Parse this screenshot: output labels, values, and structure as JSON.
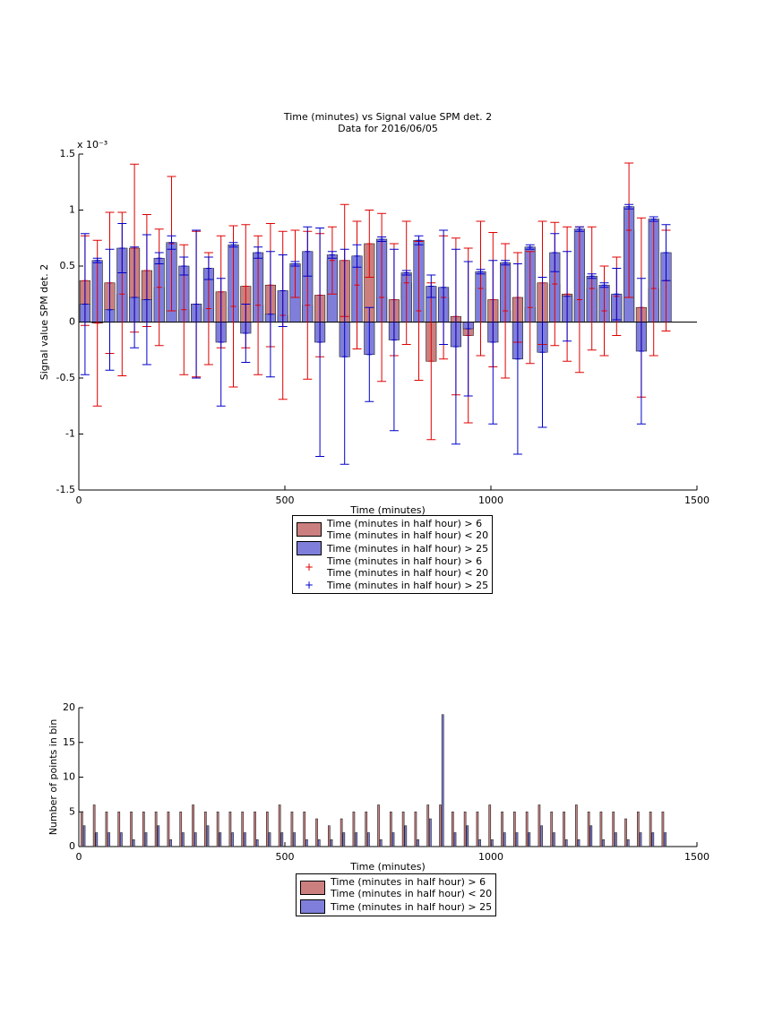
{
  "chart_data": [
    {
      "type": "bar",
      "barmode": "overlay",
      "title": "Time (minutes) vs Signal value SPM det. 2",
      "subtitle": "Data for 2016/06/05",
      "y_multiplier": "x 10⁻³",
      "xlabel": "Time (minutes)",
      "ylabel": "Signal value SPM det. 2",
      "xlim": [
        0,
        1500
      ],
      "xticks": [
        0,
        500,
        1000,
        1500
      ],
      "ylim": [
        -1.5,
        1.5
      ],
      "yticks": [
        -1.5,
        -1,
        -0.5,
        0,
        0.5,
        1,
        1.5
      ],
      "x": [
        15,
        45,
        75,
        105,
        135,
        165,
        195,
        225,
        255,
        285,
        315,
        345,
        375,
        405,
        435,
        465,
        495,
        525,
        555,
        585,
        615,
        645,
        675,
        705,
        735,
        765,
        795,
        825,
        855,
        885,
        915,
        945,
        975,
        1005,
        1035,
        1065,
        1095,
        1125,
        1155,
        1185,
        1215,
        1245,
        1275,
        1305,
        1335,
        1365,
        1395,
        1425
      ],
      "series": [
        {
          "name": "Time (minutes in half hour) > 6\nTime (minutes in half hour) < 20",
          "color": "#cc7f7f",
          "errorbar_color": "#e00000",
          "errorbar_name": "Time (minutes in half hour) > 6\nTime (minutes in half hour) < 20",
          "values": [
            0.37,
            -0.01,
            0.35,
            0.25,
            0.66,
            0.46,
            0.31,
            0.7,
            0.11,
            0.16,
            0.12,
            0.27,
            0.14,
            0.32,
            0.15,
            0.33,
            0.06,
            0.52,
            0.15,
            0.24,
            0.55,
            0.55,
            0.33,
            0.7,
            0.22,
            0.2,
            0.35,
            0.1,
            -0.35,
            0.22,
            0.05,
            -0.12,
            0.3,
            0.2,
            0.1,
            0.22,
            0.13,
            0.35,
            0.34,
            0.25,
            0.2,
            0.3,
            0.1,
            0.23,
            0.82,
            0.13,
            0.3,
            0.37
          ],
          "errors": [
            0.4,
            0.74,
            0.63,
            0.73,
            0.75,
            0.5,
            0.52,
            0.6,
            0.58,
            0.65,
            0.5,
            0.5,
            0.72,
            0.55,
            0.62,
            0.55,
            0.75,
            0.3,
            0.66,
            0.55,
            0.3,
            0.5,
            0.57,
            0.3,
            0.75,
            0.5,
            0.55,
            0.62,
            0.7,
            0.55,
            0.7,
            0.78,
            0.6,
            0.6,
            0.6,
            0.4,
            0.5,
            0.55,
            0.55,
            0.6,
            0.65,
            0.55,
            0.4,
            0.35,
            0.6,
            0.8,
            0.6,
            0.45
          ]
        },
        {
          "name": "Time (minutes in half hour) > 25",
          "color": "#7f7fdb",
          "errorbar_color": "#0000cc",
          "errorbar_name": "Time (minutes in half hour) > 25",
          "values": [
            0.16,
            0.55,
            0.11,
            0.66,
            0.22,
            0.2,
            0.57,
            0.71,
            0.5,
            0.16,
            0.48,
            -0.18,
            0.69,
            -0.1,
            0.62,
            0.07,
            0.28,
            0.52,
            0.63,
            -0.18,
            0.6,
            -0.31,
            0.59,
            -0.29,
            0.74,
            -0.16,
            0.44,
            0.73,
            0.32,
            0.31,
            -0.22,
            -0.06,
            0.45,
            -0.18,
            0.53,
            -0.33,
            0.67,
            -0.27,
            0.62,
            0.23,
            0.83,
            0.41,
            0.33,
            0.25,
            1.03,
            -0.26,
            0.92,
            0.62
          ],
          "errors": [
            0.63,
            0.02,
            0.54,
            0.22,
            0.45,
            0.58,
            0.05,
            0.06,
            0.08,
            0.66,
            0.1,
            0.57,
            0.02,
            0.26,
            0.05,
            0.56,
            0.32,
            0.02,
            0.22,
            1.02,
            0.03,
            0.96,
            0.1,
            0.42,
            0.02,
            0.81,
            0.02,
            0.04,
            0.1,
            0.51,
            0.87,
            0.6,
            0.02,
            0.73,
            0.02,
            0.85,
            0.02,
            0.67,
            0.17,
            0.4,
            0.02,
            0.02,
            0.02,
            0.23,
            0.02,
            0.65,
            0.02,
            0.25
          ]
        }
      ]
    },
    {
      "type": "bar",
      "barmode": "group",
      "xlabel": "Time (minutes)",
      "ylabel": "Number of points in bin",
      "xlim": [
        0,
        1500
      ],
      "xticks": [
        0,
        500,
        1000,
        1500
      ],
      "ylim": [
        0,
        20
      ],
      "yticks": [
        0,
        5,
        10,
        15,
        20
      ],
      "x": [
        15,
        45,
        75,
        105,
        135,
        165,
        195,
        225,
        255,
        285,
        315,
        345,
        375,
        405,
        435,
        465,
        495,
        525,
        555,
        585,
        615,
        645,
        675,
        705,
        735,
        765,
        795,
        825,
        855,
        885,
        915,
        945,
        975,
        1005,
        1035,
        1065,
        1095,
        1125,
        1155,
        1185,
        1215,
        1245,
        1275,
        1305,
        1335,
        1365,
        1395,
        1425
      ],
      "series": [
        {
          "name": "Time (minutes in half hour) > 6\nTime (minutes in half hour) < 20",
          "color": "#cc7f7f",
          "values": [
            5,
            6,
            5,
            5,
            5,
            5,
            5,
            5,
            5,
            6,
            5,
            5,
            5,
            5,
            5,
            5,
            6,
            5,
            5,
            4,
            3,
            4,
            5,
            5,
            6,
            5,
            5,
            5,
            6,
            6,
            5,
            5,
            5,
            6,
            5,
            5,
            5,
            6,
            5,
            5,
            6,
            5,
            5,
            5,
            4,
            5,
            5,
            5
          ]
        },
        {
          "name": "Time (minutes in half hour) > 25",
          "color": "#7f7fdb",
          "values": [
            3,
            2,
            2,
            2,
            1,
            2,
            3,
            1,
            2,
            2,
            3,
            2,
            2,
            2,
            1,
            2,
            2,
            2,
            1,
            1,
            1,
            2,
            2,
            2,
            1,
            2,
            3,
            1,
            4,
            19,
            2,
            3,
            1,
            1,
            2,
            2,
            2,
            3,
            2,
            1,
            1,
            3,
            1,
            2,
            1,
            2,
            2,
            2
          ]
        }
      ]
    }
  ]
}
